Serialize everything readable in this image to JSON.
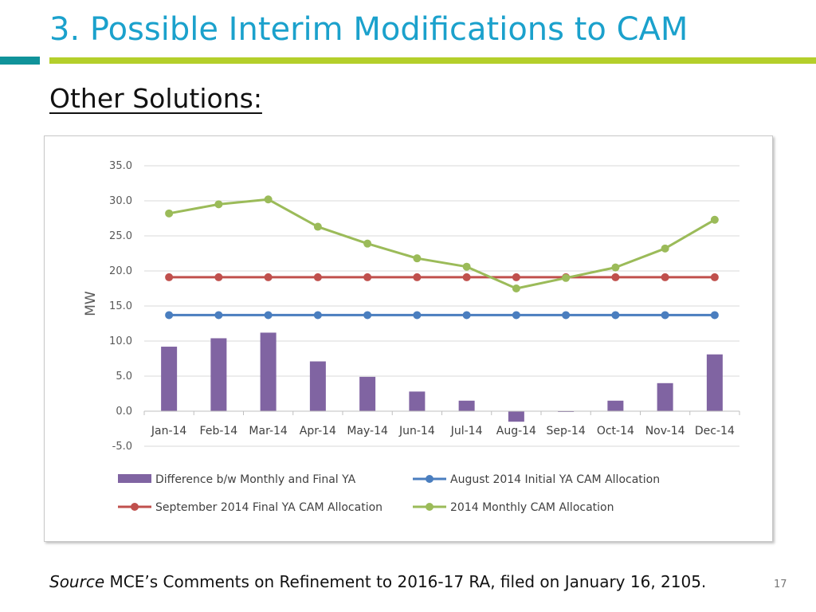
{
  "slide": {
    "title": "3. Possible Interim Modifications to CAM",
    "subtitle": "Other Solutions:",
    "source_label": "Source",
    "source_text": "MCE’s Comments on Refinement to 2016-17 RA, filed on January 16, 2105.",
    "page_number": "17"
  },
  "colors": {
    "title": "#1ba1cc",
    "accent_teal": "#10939a",
    "accent_green": "#b4cf2b",
    "bar_purple": "#8064a2",
    "line_blue": "#4a7ebf",
    "line_red": "#c0504d",
    "line_green": "#9bbb59"
  },
  "chart_data": {
    "type": "bar",
    "title": "",
    "xlabel": "",
    "ylabel": "MW",
    "ylim": [
      -5,
      35
    ],
    "yticks": [
      35,
      30,
      25,
      20,
      15,
      10,
      5,
      0,
      -5
    ],
    "ytick_labels": [
      "35.0",
      "30.0",
      "25.0",
      "20.0",
      "15.0",
      "10.0",
      "5.0",
      "0.0",
      "-5.0"
    ],
    "grid": true,
    "legend_position": "bottom",
    "categories": [
      "Jan-14",
      "Feb-14",
      "Mar-14",
      "Apr-14",
      "May-14",
      "Jun-14",
      "Jul-14",
      "Aug-14",
      "Sep-14",
      "Oct-14",
      "Nov-14",
      "Dec-14"
    ],
    "series": [
      {
        "name": "Difference b/w Monthly and Final YA",
        "type": "bar",
        "color": "#8064a2",
        "values": [
          9.2,
          10.4,
          11.2,
          7.1,
          4.9,
          2.8,
          1.5,
          -1.5,
          -0.1,
          1.5,
          4.0,
          8.1
        ]
      },
      {
        "name": "August 2014 Initial YA CAM Allocation",
        "type": "line",
        "color": "#4a7ebf",
        "values": [
          13.7,
          13.7,
          13.7,
          13.7,
          13.7,
          13.7,
          13.7,
          13.7,
          13.7,
          13.7,
          13.7,
          13.7
        ]
      },
      {
        "name": "September 2014 Final YA CAM Allocation",
        "type": "line",
        "color": "#c0504d",
        "values": [
          19.1,
          19.1,
          19.1,
          19.1,
          19.1,
          19.1,
          19.1,
          19.1,
          19.1,
          19.1,
          19.1,
          19.1
        ]
      },
      {
        "name": "2014 Monthly CAM Allocation",
        "type": "line",
        "color": "#9bbb59",
        "values": [
          28.2,
          29.5,
          30.2,
          26.3,
          23.9,
          21.8,
          20.6,
          17.5,
          19.0,
          20.5,
          23.2,
          27.3
        ]
      }
    ],
    "legend_order": [
      0,
      1,
      2,
      3
    ]
  }
}
